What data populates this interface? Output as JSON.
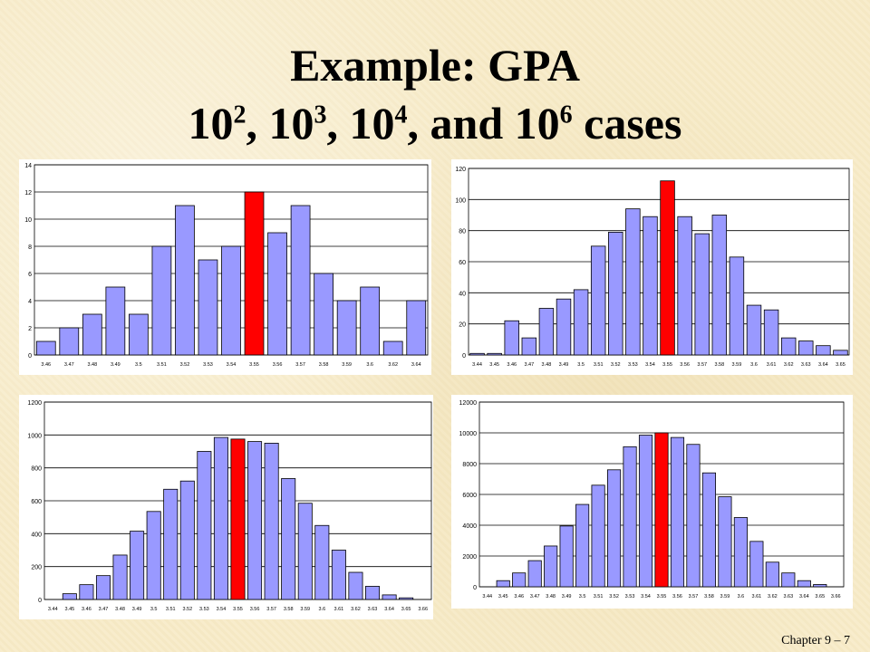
{
  "slide": {
    "title_line1": "Example: GPA",
    "title_line2": {
      "base": "10",
      "exp1": "2",
      "sep1": ", 10",
      "exp2": "3",
      "sep2": ", 10",
      "exp3": "4",
      "sep3": ", and 10",
      "exp4": "6",
      "tail": " cases"
    },
    "footer": "Chapter 9 – 7"
  },
  "colors": {
    "bar": "#9999ff",
    "highlight": "#ff0000",
    "bar_stroke": "#000000"
  },
  "chart_data": [
    {
      "type": "bar",
      "categories": [
        "3.46",
        "3.47",
        "3.48",
        "3.49",
        "3.5",
        "3.51",
        "3.52",
        "3.53",
        "3.54",
        "3.55",
        "3.56",
        "3.57",
        "3.58",
        "3.59",
        "3.6",
        "3.62",
        "3.64"
      ],
      "values": [
        1,
        2,
        3,
        5,
        3,
        8,
        11,
        7,
        8,
        12,
        9,
        11,
        6,
        4,
        5,
        1,
        4
      ],
      "ylim": [
        0,
        14
      ],
      "yticks": [
        0,
        2,
        4,
        6,
        8,
        10,
        12,
        14
      ],
      "highlight_index": 9,
      "grid": true
    },
    {
      "type": "bar",
      "categories": [
        "3.44",
        "3.45",
        "3.46",
        "3.47",
        "3.48",
        "3.49",
        "3.5",
        "3.51",
        "3.52",
        "3.53",
        "3.54",
        "3.55",
        "3.56",
        "3.57",
        "3.58",
        "3.59",
        "3.6",
        "3.61",
        "3.62",
        "3.63",
        "3.64",
        "3.65"
      ],
      "values": [
        1,
        1,
        22,
        11,
        30,
        36,
        42,
        70,
        79,
        94,
        89,
        112,
        89,
        78,
        90,
        63,
        32,
        29,
        11,
        9,
        6,
        3
      ],
      "ylim": [
        0,
        120
      ],
      "yticks": [
        0,
        20,
        40,
        60,
        80,
        100,
        120
      ],
      "highlight_index": 11,
      "grid": true
    },
    {
      "type": "bar",
      "categories": [
        "3.44",
        "3.45",
        "3.46",
        "3.47",
        "3.48",
        "3.49",
        "3.5",
        "3.51",
        "3.52",
        "3.53",
        "3.54",
        "3.55",
        "3.56",
        "3.57",
        "3.58",
        "3.59",
        "3.6",
        "3.61",
        "3.62",
        "3.63",
        "3.64",
        "3.65",
        "3.66"
      ],
      "values": [
        0,
        35,
        90,
        145,
        270,
        415,
        535,
        670,
        720,
        900,
        985,
        975,
        960,
        950,
        735,
        585,
        450,
        300,
        165,
        80,
        28,
        10,
        0
      ],
      "ylim": [
        0,
        1200
      ],
      "yticks": [
        0,
        200,
        400,
        600,
        800,
        1000,
        1200
      ],
      "highlight_index": 11,
      "grid": true
    },
    {
      "type": "bar",
      "categories": [
        "3.44",
        "3.45",
        "3.46",
        "3.47",
        "3.48",
        "3.49",
        "3.5",
        "3.51",
        "3.52",
        "3.53",
        "3.54",
        "3.55",
        "3.56",
        "3.57",
        "3.58",
        "3.59",
        "3.6",
        "3.61",
        "3.62",
        "3.63",
        "3.64",
        "3.65",
        "3.66"
      ],
      "values": [
        0,
        400,
        900,
        1700,
        2650,
        3950,
        5350,
        6600,
        7600,
        9100,
        9850,
        10000,
        9700,
        9250,
        7400,
        5850,
        4500,
        2950,
        1600,
        900,
        400,
        150,
        0
      ],
      "ylim": [
        0,
        12000
      ],
      "yticks": [
        0,
        2000,
        4000,
        6000,
        8000,
        10000,
        12000
      ],
      "highlight_index": 11,
      "grid": true
    }
  ]
}
